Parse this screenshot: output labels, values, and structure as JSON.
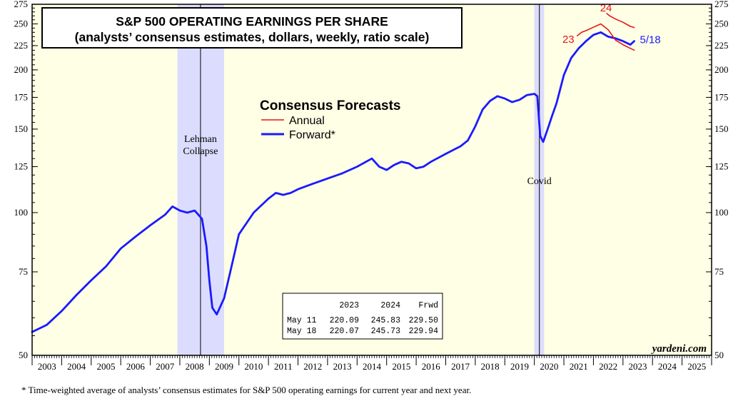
{
  "title_line1": "S&P 500 OPERATING EARNINGS PER SHARE",
  "title_line2": "(analysts’ consensus estimates, dollars, weekly, ratio scale)",
  "footnote": "*   Time-weighted average of analysts’ consensus estimates for S&P 500 operating earnings for current year and next year.",
  "watermark": "yardeni.com",
  "legend": {
    "title": "Consensus Forecasts",
    "items": [
      {
        "label": "Annual",
        "color": "#e8141c"
      },
      {
        "label": "Forward*",
        "color": "#1a1aff"
      }
    ]
  },
  "recessions": [
    {
      "start": 2007.917,
      "end": 2009.5
    },
    {
      "start": 2020.0,
      "end": 2020.33
    }
  ],
  "annotations": {
    "lehman_line1": "Lehman",
    "lehman_line2": "Collapse",
    "lehman_date": 2008.7,
    "covid": "Covid",
    "covid_date": 2020.17,
    "label_23": "23",
    "label_24": "24",
    "label_latest": "5/18"
  },
  "table": {
    "headers": [
      "",
      "2023",
      "2024",
      "Frwd"
    ],
    "rows": [
      [
        "May 11",
        "220.09",
        "245.83",
        "229.50"
      ],
      [
        "May 18",
        "220.07",
        "245.73",
        "229.94"
      ]
    ]
  },
  "colors": {
    "plot_background": "#ffffe5",
    "recession_band": "#dcdcff",
    "forward": "#1a1aff",
    "annual": "#e8141c"
  },
  "chart_data": {
    "type": "line",
    "scale": "log",
    "ylim": [
      50,
      275
    ],
    "xlim": [
      2003,
      2026
    ],
    "yticks": [
      50,
      75,
      100,
      125,
      150,
      175,
      200,
      225,
      250,
      275
    ],
    "xticks": [
      "2003",
      "2004",
      "2005",
      "2006",
      "2007",
      "2008",
      "2009",
      "2010",
      "2011",
      "2012",
      "2013",
      "2014",
      "2015",
      "2016",
      "2017",
      "2018",
      "2019",
      "2020",
      "2021",
      "2022",
      "2023",
      "2024",
      "2025"
    ],
    "series": [
      {
        "name": "Forward*",
        "x": [
          2003.0,
          2003.5,
          2004.0,
          2004.5,
          2005.0,
          2005.5,
          2006.0,
          2006.5,
          2007.0,
          2007.5,
          2007.75,
          2008.0,
          2008.25,
          2008.5,
          2008.75,
          2008.9,
          2009.0,
          2009.1,
          2009.25,
          2009.5,
          2009.75,
          2010.0,
          2010.5,
          2011.0,
          2011.25,
          2011.5,
          2011.75,
          2012.0,
          2012.5,
          2013.0,
          2013.5,
          2014.0,
          2014.5,
          2014.75,
          2015.0,
          2015.25,
          2015.5,
          2015.75,
          2016.0,
          2016.25,
          2016.5,
          2017.0,
          2017.5,
          2017.75,
          2018.0,
          2018.25,
          2018.5,
          2018.75,
          2019.0,
          2019.25,
          2019.5,
          2019.75,
          2020.0,
          2020.1,
          2020.2,
          2020.3,
          2020.45,
          2020.6,
          2020.75,
          2021.0,
          2021.25,
          2021.5,
          2021.75,
          2022.0,
          2022.25,
          2022.5,
          2022.75,
          2023.0,
          2023.25,
          2023.38
        ],
        "y": [
          56,
          58,
          62,
          67,
          72,
          77,
          84,
          89,
          94,
          99,
          103,
          101,
          100,
          101,
          97,
          85,
          72,
          63,
          61,
          66,
          77,
          90,
          100,
          107,
          110,
          109,
          110,
          112,
          115,
          118,
          121,
          125,
          130,
          125,
          123,
          126,
          128,
          127,
          124,
          125,
          128,
          133,
          138,
          142,
          152,
          165,
          172,
          176,
          174,
          171,
          173,
          177,
          178,
          176,
          145,
          141,
          150,
          160,
          170,
          195,
          212,
          222,
          230,
          237,
          240,
          235,
          233,
          230,
          226,
          229.94
        ]
      },
      {
        "name": "Annual 23",
        "x": [
          2021.45,
          2021.6,
          2021.75,
          2022.0,
          2022.25,
          2022.5,
          2022.75,
          2023.0,
          2023.25,
          2023.38
        ],
        "y": [
          236,
          240,
          242,
          246,
          250,
          243,
          231,
          226,
          222,
          220.07
        ]
      },
      {
        "name": "Annual 24",
        "x": [
          2022.45,
          2022.55,
          2022.75,
          2023.0,
          2023.25,
          2023.38
        ],
        "y": [
          263,
          260,
          256,
          252,
          247,
          245.73
        ]
      }
    ]
  }
}
